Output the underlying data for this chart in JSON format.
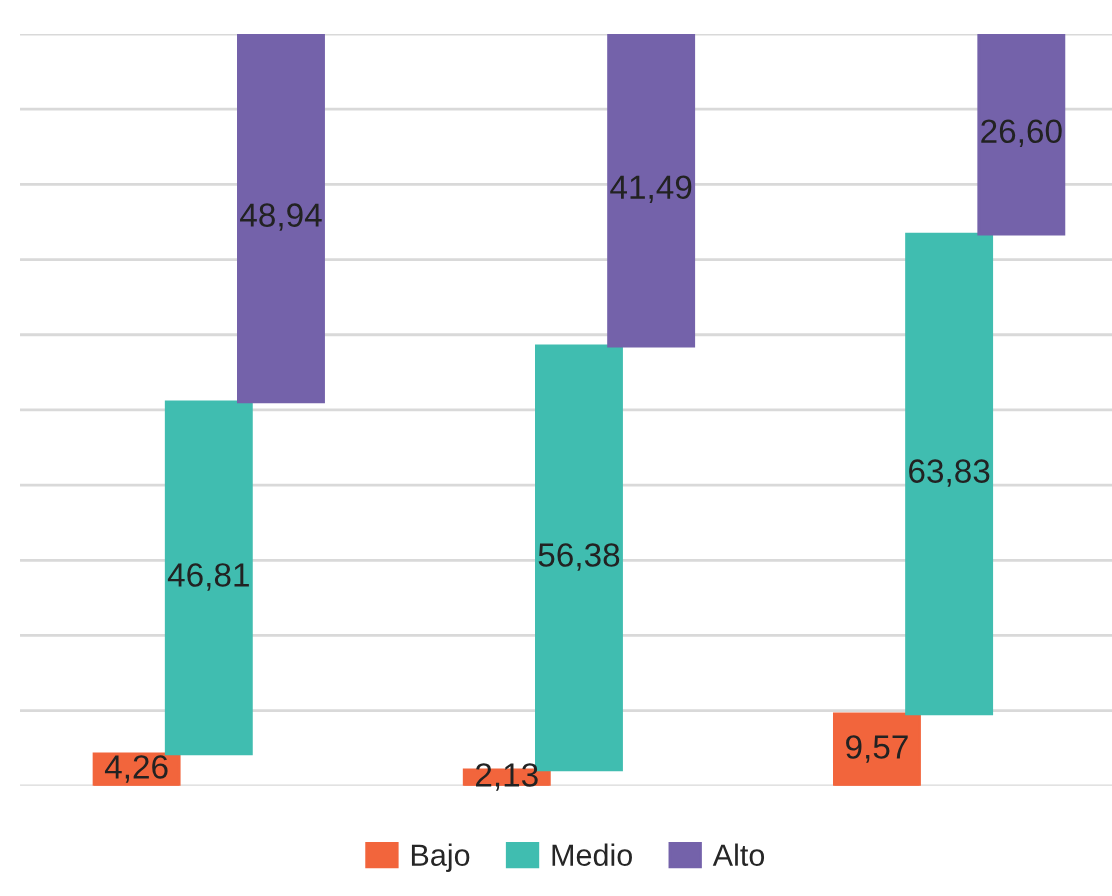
{
  "chart_data": {
    "type": "bar",
    "stacked": true,
    "categories": [
      null,
      null,
      null
    ],
    "series": [
      {
        "name": "Bajo",
        "color": "#f2653c",
        "values": [
          4.26,
          2.13,
          9.57
        ],
        "value_labels": [
          "4,26",
          "2,13",
          "9,57"
        ]
      },
      {
        "name": "Medio",
        "color": "#40bdb0",
        "values": [
          46.81,
          56.38,
          63.83
        ],
        "value_labels": [
          "46,81",
          "56,38",
          "63,83"
        ]
      },
      {
        "name": "Alto",
        "color": "#7462aa",
        "values": [
          48.94,
          41.49,
          26.6
        ],
        "value_labels": [
          "48,94",
          "41,49",
          "26,60"
        ]
      }
    ],
    "grid": "y",
    "legend": "bottom"
  }
}
